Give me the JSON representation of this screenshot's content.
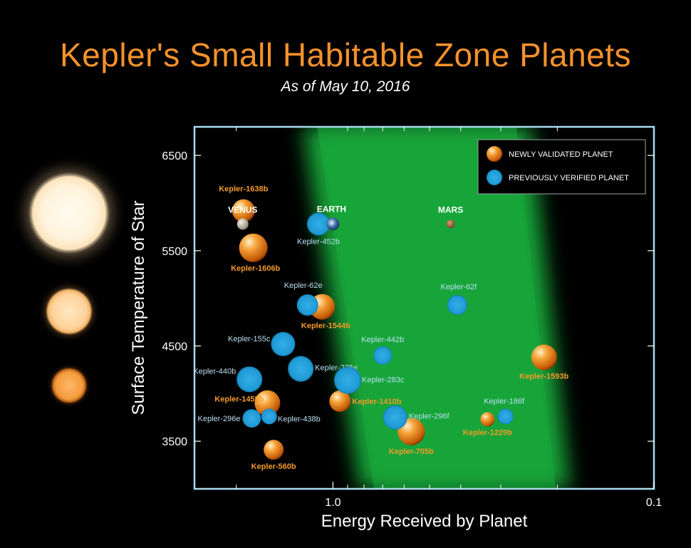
{
  "header": {
    "title": "Kepler's Small Habitable Zone Planets",
    "subtitle": "As of May 10, 2016"
  },
  "colors": {
    "new": "#f39a2a",
    "previous": "#2aa4df",
    "title": "#f4922b",
    "hz_green": "#17a238",
    "frame": "#a9dcf0"
  },
  "chart_data": {
    "type": "scatter",
    "xlabel": "Energy Received by Planet",
    "ylabel": "Surface Temperature of Star",
    "x_scale": "log",
    "x_direction": "decreasing",
    "xlim": [
      2.7,
      0.1
    ],
    "ylim": [
      3000,
      6800
    ],
    "x_ticks": [
      {
        "value": 1.0,
        "label": "1.0"
      },
      {
        "value": 0.1,
        "label": "0.1"
      }
    ],
    "y_ticks": [
      {
        "value": 6500,
        "label": "6500"
      },
      {
        "value": 5500,
        "label": "5500"
      },
      {
        "value": 4500,
        "label": "4500"
      },
      {
        "value": 3500,
        "label": "3500"
      }
    ],
    "grid": false,
    "legend": {
      "position": "top-right",
      "entries": [
        {
          "label": "NEWLY VALIDATED PLANET",
          "group": "new"
        },
        {
          "label": "PREVIOUSLY VERIFIED PLANET",
          "group": "previous"
        }
      ]
    },
    "series": [
      {
        "name": "NEWLY VALIDATED PLANET",
        "group": "new",
        "points": [
          {
            "label": "Kepler-1638b",
            "x": 1.9,
            "y": 5920
          },
          {
            "label": "Kepler-1606b",
            "x": 1.77,
            "y": 5530
          },
          {
            "label": "Kepler-1544b",
            "x": 1.08,
            "y": 4910
          },
          {
            "label": "Kepler-1455b",
            "x": 1.6,
            "y": 3900
          },
          {
            "label": "Kepler-1410b",
            "x": 0.95,
            "y": 3920
          },
          {
            "label": "Kepler-705b",
            "x": 0.57,
            "y": 3600
          },
          {
            "label": "Kepler-560b",
            "x": 1.53,
            "y": 3410
          },
          {
            "label": "Kepler-1593b",
            "x": 0.22,
            "y": 4380
          },
          {
            "label": "Kepler-1229b",
            "x": 0.33,
            "y": 3730
          }
        ]
      },
      {
        "name": "PREVIOUSLY VERIFIED PLANET",
        "group": "previous",
        "points": [
          {
            "label": "Kepler-452b",
            "x": 1.11,
            "y": 5780
          },
          {
            "label": "Kepler-62e",
            "x": 1.2,
            "y": 4930
          },
          {
            "label": "Kepler-62f",
            "x": 0.41,
            "y": 4930
          },
          {
            "label": "Kepler-155c",
            "x": 1.43,
            "y": 4520
          },
          {
            "label": "Kepler-442b",
            "x": 0.7,
            "y": 4400
          },
          {
            "label": "Kepler-235e",
            "x": 1.26,
            "y": 4260
          },
          {
            "label": "Kepler-440b",
            "x": 1.82,
            "y": 4150
          },
          {
            "label": "Kepler-283c",
            "x": 0.9,
            "y": 4140
          },
          {
            "label": "Kepler-296e",
            "x": 1.79,
            "y": 3740
          },
          {
            "label": "Kepler-438b",
            "x": 1.58,
            "y": 3760
          },
          {
            "label": "Kepler-296f",
            "x": 0.64,
            "y": 3750
          },
          {
            "label": "Kepler-186f",
            "x": 0.29,
            "y": 3760
          }
        ]
      },
      {
        "name": "",
        "group": "solar",
        "points": [
          {
            "label": "VENUS",
            "x": 1.91,
            "y": 5780
          },
          {
            "label": "EARTH",
            "x": 1.0,
            "y": 5780
          },
          {
            "label": "MARS",
            "x": 0.43,
            "y": 5780
          }
        ]
      }
    ],
    "annotations": [
      {
        "text": "Habitable zone shown as green band",
        "visible": false
      }
    ]
  }
}
